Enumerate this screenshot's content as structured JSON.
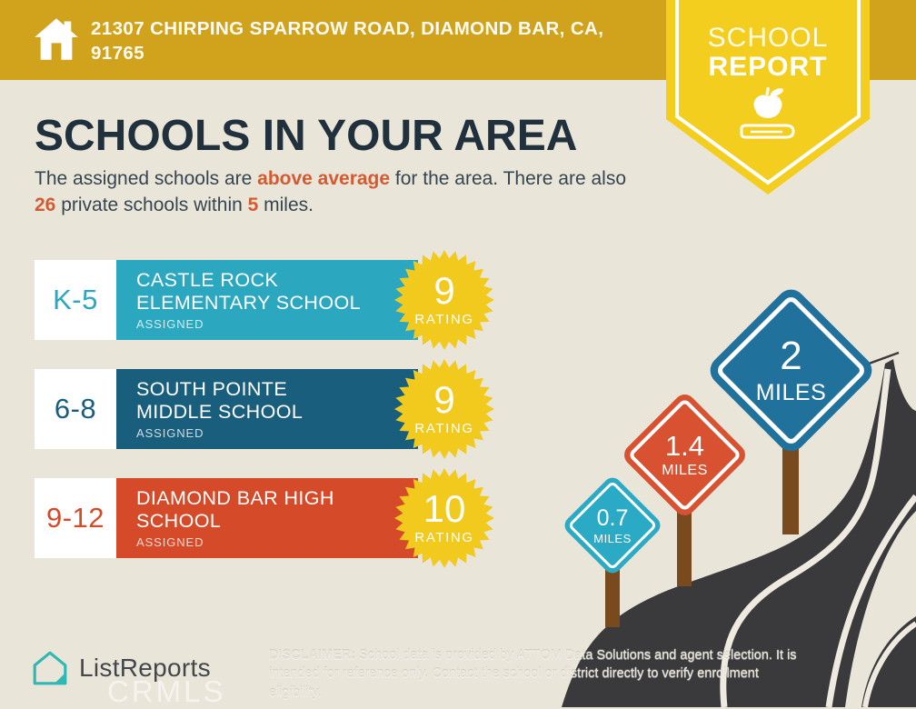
{
  "banner": {
    "address": "21307 CHIRPING SPARROW ROAD, DIAMOND BAR, CA, 91765"
  },
  "ribbon": {
    "line1": "SCHOOL",
    "line2": "REPORT"
  },
  "header": {
    "title": "SCHOOLS IN YOUR AREA",
    "subtitle": {
      "t1": "The assigned schools are ",
      "h1": "above average",
      "t2": " for the area. There are also ",
      "h2": "26",
      "t3": " private schools within ",
      "h3": "5",
      "t4": " miles."
    }
  },
  "labels": {
    "rating": "RATING"
  },
  "schools": [
    {
      "grades": "K-5",
      "name": "CASTLE ROCK ELEMENTARY SCHOOL",
      "status": "ASSIGNED",
      "rating": "9",
      "color": "#2BA7C0"
    },
    {
      "grades": "6-8",
      "name": "SOUTH POINTE MIDDLE SCHOOL",
      "status": "ASSIGNED",
      "rating": "9",
      "color": "#195F7D"
    },
    {
      "grades": "9-12",
      "name": "DIAMOND BAR HIGH SCHOOL",
      "status": "ASSIGNED",
      "rating": "10",
      "color": "#D54A28"
    }
  ],
  "signs": [
    {
      "value": "0.7",
      "unit": "MILES",
      "color": "#2BAAC5"
    },
    {
      "value": "1.4",
      "unit": "MILES",
      "color": "#D85130"
    },
    {
      "value": "2",
      "unit": "MILES",
      "color": "#20719B"
    }
  ],
  "footer": {
    "brand": "ListReports",
    "watermark": "CRMLS",
    "disclaimer_label": "DISCLAIMER:",
    "disclaimer_text": " School data is provided by ATTOM Data Solutions and agent selection. It is intended for reference only. Contact the school or district directly to verify enrollment eligibility."
  },
  "colors": {
    "banner_gold": "#D1A31D",
    "ribbon_yellow": "#F3CE1E",
    "starburst_yellow": "#F1CA1D",
    "background_beige": "#EAE5D9",
    "title_navy": "#20303D",
    "accent_orange": "#D35B32",
    "road_charcoal": "#3A3A3C",
    "road_line": "#EFEAE0",
    "post_brown": "#7A4A1F",
    "logo_teal": "#2FB8B3"
  }
}
